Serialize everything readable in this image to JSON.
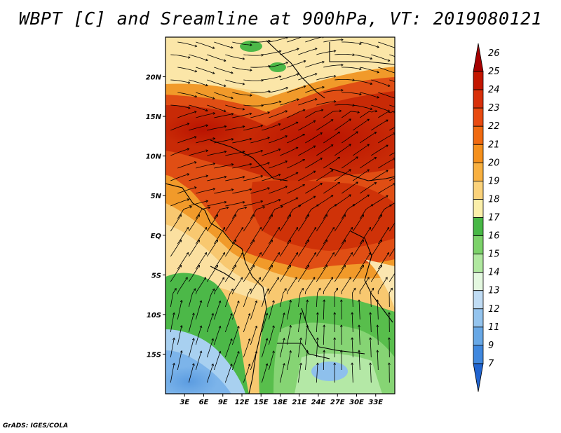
{
  "title": "WBPT [C] and Sreamline at 900hPa, VT: 2019080121",
  "credit": "GrADS: IGES/COLA",
  "map": {
    "variable": "Wet-bulb potential temperature",
    "level": "900hPa",
    "lon_range": [
      0,
      36
    ],
    "lat_range": [
      -20,
      25
    ],
    "lat_labels": [
      "20N",
      "15N",
      "10N",
      "5N",
      "EQ",
      "5S",
      "10S",
      "15S"
    ],
    "lat_values": [
      20,
      15,
      10,
      5,
      0,
      -5,
      -10,
      -15
    ],
    "lon_labels": [
      "3E",
      "6E",
      "9E",
      "12E",
      "15E",
      "18E",
      "21E",
      "24E",
      "27E",
      "30E",
      "33E"
    ],
    "lon_values": [
      3,
      6,
      9,
      12,
      15,
      18,
      21,
      24,
      27,
      30,
      33
    ]
  },
  "colorbar": {
    "labels": [
      "26",
      "25",
      "24",
      "23",
      "22",
      "21",
      "20",
      "19",
      "18",
      "17",
      "16",
      "15",
      "14",
      "13",
      "12",
      "11",
      "9",
      "7"
    ],
    "colors": [
      "#a50000",
      "#c31600",
      "#d8300a",
      "#e84a10",
      "#f06a10",
      "#f5901c",
      "#f8b040",
      "#fbd27a",
      "#fbefaa",
      "#48b846",
      "#7cd26a",
      "#b0e8a0",
      "#e4f8e0",
      "#c0dcf4",
      "#94c4ee",
      "#68a8e6",
      "#4088de",
      "#2064d0"
    ]
  }
}
